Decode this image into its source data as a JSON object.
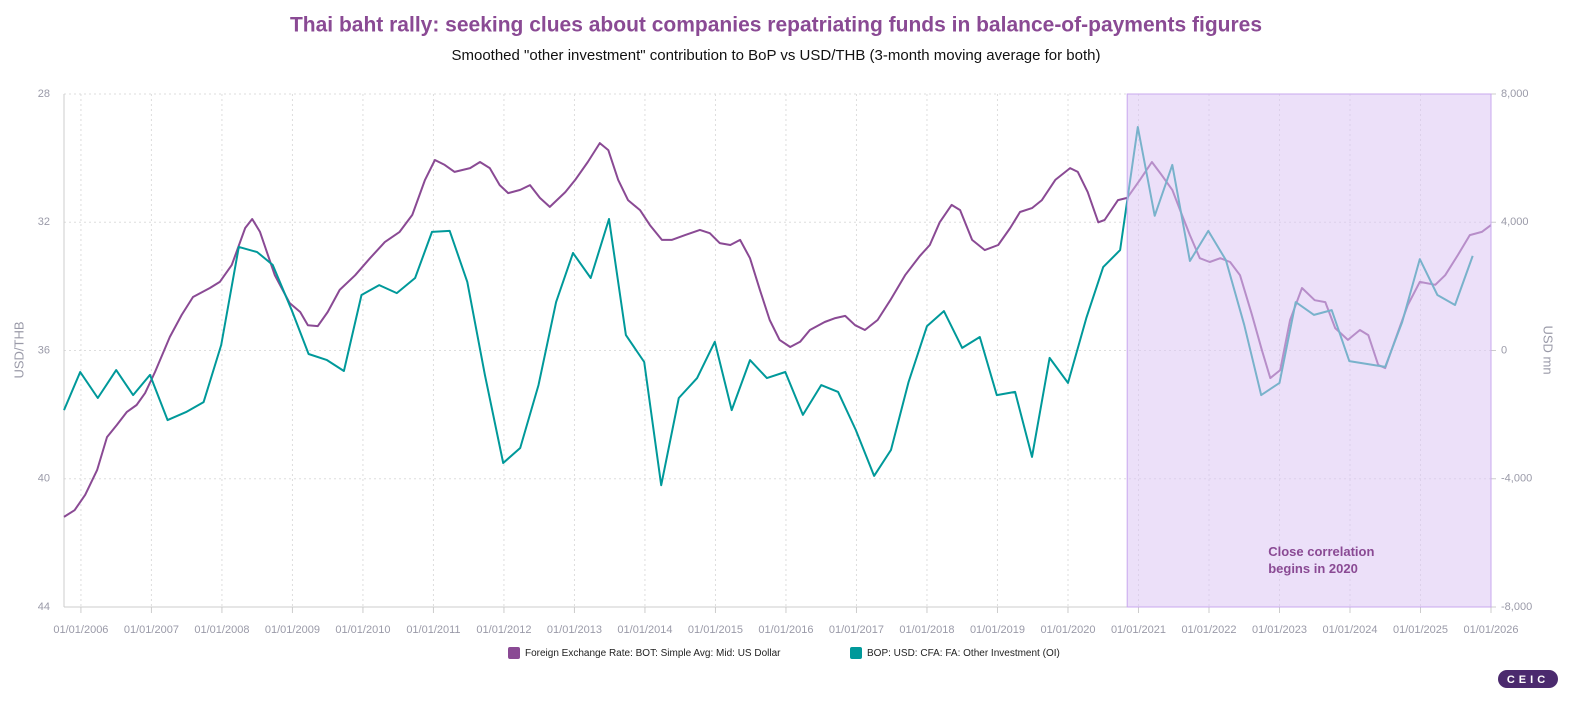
{
  "chart_data": {
    "type": "line",
    "title": "Thai baht rally: seeking clues about companies repatriating funds in balance-of-payments figures",
    "subtitle": "Smoothed \"other investment\" contribution to BoP vs USD/THB (3-month moving average for both)",
    "y_label": "USD/THB",
    "y2_label": "USD mn",
    "xlim": [
      2005.76,
      2026.0
    ],
    "xticks": [
      {
        "value": 2006,
        "label": "01/01/2006"
      },
      {
        "value": 2007,
        "label": "01/01/2007"
      },
      {
        "value": 2008,
        "label": "01/01/2008"
      },
      {
        "value": 2009,
        "label": "01/01/2009"
      },
      {
        "value": 2010,
        "label": "01/01/2010"
      },
      {
        "value": 2011,
        "label": "01/01/2011"
      },
      {
        "value": 2012,
        "label": "01/01/2012"
      },
      {
        "value": 2013,
        "label": "01/01/2013"
      },
      {
        "value": 2014,
        "label": "01/01/2014"
      },
      {
        "value": 2015,
        "label": "01/01/2015"
      },
      {
        "value": 2016,
        "label": "01/01/2016"
      },
      {
        "value": 2017,
        "label": "01/01/2017"
      },
      {
        "value": 2018,
        "label": "01/01/2018"
      },
      {
        "value": 2019,
        "label": "01/01/2019"
      },
      {
        "value": 2020,
        "label": "01/01/2020"
      },
      {
        "value": 2021,
        "label": "01/01/2021"
      },
      {
        "value": 2022,
        "label": "01/01/2022"
      },
      {
        "value": 2023,
        "label": "01/01/2023"
      },
      {
        "value": 2024,
        "label": "01/01/2024"
      },
      {
        "value": 2025,
        "label": "01/01/2025"
      },
      {
        "value": 2026,
        "label": "01/01/2026"
      }
    ],
    "ylim": [
      44,
      28
    ],
    "yticks": [
      28,
      32,
      36,
      40,
      44
    ],
    "y2lim": [
      -8000,
      8000
    ],
    "y2ticks": [
      {
        "value": 8000,
        "label": "8,000"
      },
      {
        "value": 4000,
        "label": "4,000"
      },
      {
        "value": 0,
        "label": "0"
      },
      {
        "value": -4000,
        "label": "-4,000"
      },
      {
        "value": -8000,
        "label": "-8,000"
      }
    ],
    "grid": true,
    "highlight": {
      "xlim": [
        2020.84,
        2026.0
      ],
      "color": "#dcc6f4"
    },
    "annotation": {
      "lines": [
        "Close correlation",
        "begins in 2020"
      ],
      "x": 2022.84,
      "y": 42.3,
      "color": "#8a4a94"
    },
    "series": [
      {
        "name": "Foreign Exchange Rate: BOT: Simple Avg: Mid: US Dollar",
        "color": "#8a4a94",
        "axis": "y",
        "x": [
          2005.76,
          2005.91,
          2006.06,
          2006.23,
          2006.37,
          2006.51,
          2006.65,
          2006.79,
          2006.91,
          2007.05,
          2007.26,
          2007.43,
          2007.59,
          2007.83,
          2007.97,
          2008.14,
          2008.33,
          2008.43,
          2008.54,
          2008.75,
          2008.96,
          2009.11,
          2009.22,
          2009.36,
          2009.5,
          2009.67,
          2009.89,
          2010.1,
          2010.31,
          2010.52,
          2010.7,
          2010.88,
          2011.02,
          2011.16,
          2011.3,
          2011.52,
          2011.66,
          2011.8,
          2011.94,
          2012.06,
          2012.23,
          2012.37,
          2012.51,
          2012.65,
          2012.87,
          2013.01,
          2013.19,
          2013.36,
          2013.48,
          2013.62,
          2013.76,
          2013.93,
          2014.07,
          2014.24,
          2014.38,
          2014.57,
          2014.78,
          2014.92,
          2015.06,
          2015.21,
          2015.35,
          2015.49,
          2015.63,
          2015.77,
          2015.91,
          2016.06,
          2016.2,
          2016.34,
          2016.55,
          2016.7,
          2016.84,
          2016.98,
          2017.12,
          2017.3,
          2017.48,
          2017.69,
          2017.9,
          2018.04,
          2018.18,
          2018.35,
          2018.47,
          2018.64,
          2018.82,
          2019.01,
          2019.18,
          2019.32,
          2019.49,
          2019.63,
          2019.82,
          2020.03,
          2020.14,
          2020.28,
          2020.43,
          2020.52,
          2020.71,
          2020.84,
          2021.02,
          2021.19,
          2021.33,
          2021.48,
          2021.59,
          2021.73,
          2021.87,
          2022.01,
          2022.16,
          2022.3,
          2022.44,
          2022.61,
          2022.75,
          2022.87,
          2023.01,
          2023.15,
          2023.32,
          2023.5,
          2023.65,
          2023.79,
          2023.97,
          2024.14,
          2024.26,
          2024.4,
          2024.5,
          2024.64,
          2024.82,
          2024.99,
          2025.21,
          2025.35,
          2025.53,
          2025.7,
          2025.87,
          2026.0
        ],
        "values": [
          41.19,
          40.98,
          40.5,
          39.73,
          38.7,
          38.32,
          37.92,
          37.7,
          37.33,
          36.67,
          35.58,
          34.89,
          34.33,
          34.05,
          33.86,
          33.33,
          32.18,
          31.9,
          32.3,
          33.65,
          34.52,
          34.8,
          35.21,
          35.24,
          34.8,
          34.11,
          33.65,
          33.12,
          32.62,
          32.3,
          31.77,
          30.68,
          30.06,
          30.21,
          30.43,
          30.31,
          30.12,
          30.31,
          30.84,
          31.09,
          30.99,
          30.84,
          31.24,
          31.52,
          31.06,
          30.68,
          30.12,
          29.53,
          29.75,
          30.68,
          31.31,
          31.62,
          32.09,
          32.55,
          32.55,
          32.4,
          32.24,
          32.34,
          32.65,
          32.71,
          32.55,
          33.12,
          34.11,
          35.05,
          35.67,
          35.89,
          35.73,
          35.36,
          35.11,
          34.99,
          34.92,
          35.21,
          35.36,
          35.05,
          34.43,
          33.65,
          33.05,
          32.71,
          32.0,
          31.46,
          31.62,
          32.55,
          32.87,
          32.71,
          32.18,
          31.68,
          31.56,
          31.31,
          30.68,
          30.31,
          30.43,
          31.06,
          32.0,
          31.93,
          31.31,
          31.24,
          30.68,
          30.12,
          30.53,
          30.99,
          31.62,
          32.4,
          33.12,
          33.24,
          33.12,
          33.24,
          33.65,
          34.89,
          35.99,
          36.86,
          36.61,
          35.05,
          34.05,
          34.43,
          34.49,
          35.3,
          35.67,
          35.36,
          35.52,
          36.45,
          36.55,
          35.67,
          34.58,
          33.86,
          33.95,
          33.65,
          33.02,
          32.4,
          32.3,
          32.09
        ]
      },
      {
        "name": "BOP: USD: CFA: FA: Other Investment (OI)",
        "color": "#00999a",
        "axis": "y2",
        "x": [
          2005.76,
          2005.99,
          2006.24,
          2006.5,
          2006.74,
          2006.98,
          2007.23,
          2007.49,
          2007.74,
          2007.99,
          2008.24,
          2008.5,
          2008.72,
          2008.99,
          2009.23,
          2009.49,
          2009.73,
          2009.98,
          2010.23,
          2010.48,
          2010.74,
          2010.98,
          2011.23,
          2011.48,
          2011.73,
          2011.99,
          2012.23,
          2012.49,
          2012.74,
          2012.98,
          2013.23,
          2013.49,
          2013.73,
          2013.99,
          2014.23,
          2014.48,
          2014.74,
          2014.99,
          2015.23,
          2015.49,
          2015.73,
          2015.99,
          2016.24,
          2016.5,
          2016.74,
          2016.99,
          2017.25,
          2017.49,
          2017.74,
          2018.0,
          2018.24,
          2018.5,
          2018.75,
          2018.99,
          2019.25,
          2019.49,
          2019.74,
          2020.0,
          2020.26,
          2020.5,
          2020.74,
          2020.99,
          2021.23,
          2021.48,
          2021.73,
          2021.99,
          2022.24,
          2022.5,
          2022.74,
          2023.0,
          2023.23,
          2023.49,
          2023.74,
          2023.99,
          2024.5,
          2024.74,
          2024.99,
          2025.24,
          2025.49,
          2025.74
        ],
        "values": [
          -1860,
          -670,
          -1480,
          -610,
          -1390,
          -760,
          -2170,
          -1920,
          -1610,
          170,
          3230,
          3070,
          2670,
          1260,
          -110,
          -300,
          -640,
          1730,
          2040,
          1790,
          2260,
          3700,
          3730,
          2140,
          -760,
          -3510,
          -3040,
          -1080,
          1510,
          3040,
          2260,
          4100,
          480,
          -360,
          -4200,
          -1480,
          -860,
          270,
          -1860,
          -300,
          -860,
          -670,
          -2010,
          -1080,
          -1290,
          -2480,
          -3910,
          -3100,
          -980,
          760,
          1230,
          80,
          420,
          -1390,
          -1290,
          -3320,
          -230,
          -1010,
          1010,
          2600,
          3130,
          6970,
          4200,
          5790,
          2790,
          3730,
          2820,
          800,
          -1390,
          -1010,
          1510,
          1110,
          1260,
          -330,
          -510,
          890,
          2850,
          1730,
          1420,
          2950
        ]
      }
    ],
    "brand": "CEIC"
  }
}
